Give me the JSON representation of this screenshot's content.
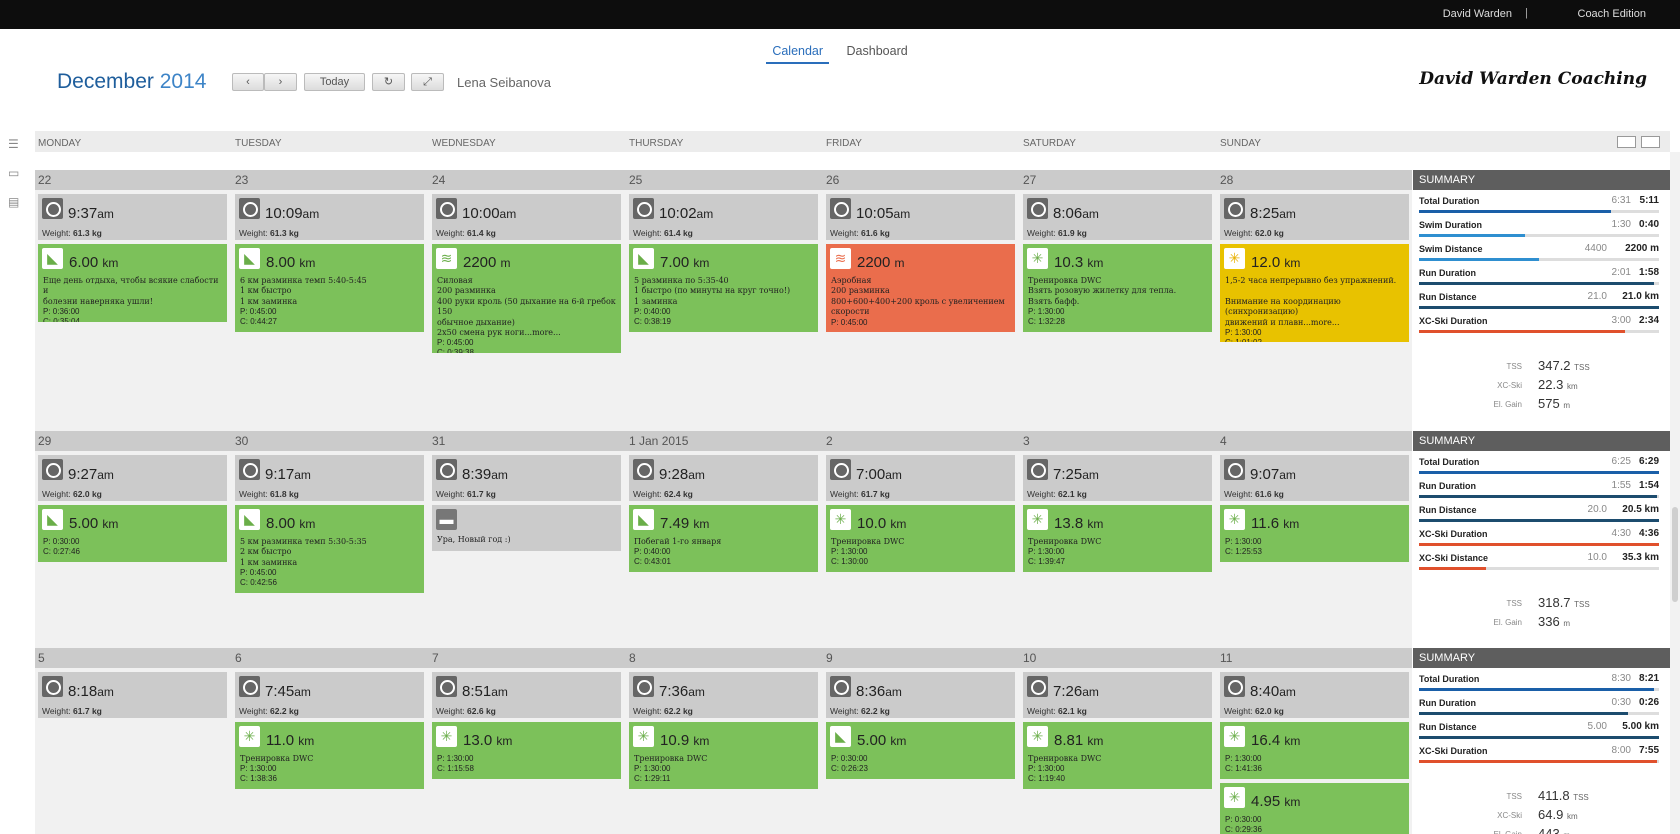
{
  "topbar": {
    "user": "David Warden",
    "separator": "|",
    "edition": "Coach Edition"
  },
  "nav": {
    "tabs": [
      {
        "label": "Calendar",
        "active": true
      },
      {
        "label": "Dashboard",
        "active": false
      }
    ]
  },
  "header": {
    "month": "December",
    "year": "2014",
    "prev_icon": "chevron-left-icon",
    "next_icon": "chevron-right-icon",
    "today_label": "Today",
    "refresh_icon": "refresh-icon",
    "expand_icon": "expand-icon",
    "athlete": "Lena Seibanova",
    "brand": "David Warden Coaching"
  },
  "days": [
    "MONDAY",
    "TUESDAY",
    "WEDNESDAY",
    "THURSDAY",
    "FRIDAY",
    "SATURDAY",
    "SUNDAY"
  ],
  "weeks": [
    {
      "dates": [
        "22",
        "23",
        "24",
        "25",
        "26",
        "27",
        "28"
      ],
      "metrics": [
        {
          "time": "9:37",
          "ampm": "am",
          "weight_label": "Weight:",
          "weight": "61.3 kg"
        },
        {
          "time": "10:09",
          "ampm": "am",
          "weight_label": "Weight:",
          "weight": "61.3 kg"
        },
        {
          "time": "10:00",
          "ampm": "am",
          "weight_label": "Weight:",
          "weight": "61.4 kg"
        },
        {
          "time": "10:02",
          "ampm": "am",
          "weight_label": "Weight:",
          "weight": "61.4 kg"
        },
        {
          "time": "10:05",
          "ampm": "am",
          "weight_label": "Weight:",
          "weight": "61.6 kg"
        },
        {
          "time": "8:06",
          "ampm": "am",
          "weight_label": "Weight:",
          "weight": "61.9 kg"
        },
        {
          "time": "8:25",
          "ampm": "am",
          "weight_label": "Weight:",
          "weight": "62.0 kg"
        }
      ],
      "workouts": [
        [
          {
            "color": "green",
            "icon": "run-shoe-icon",
            "dist": "6.00",
            "unit": "km",
            "desc": "Еще день отдыха, чтобы всякие слабости и\nболезни наверняка ушли!",
            "p": "P: 0:36:00",
            "c": "C: 0:35:04"
          }
        ],
        [
          {
            "color": "green",
            "icon": "run-shoe-icon",
            "dist": "8.00",
            "unit": "km",
            "desc": "6 км разминка темп 5:40-5:45\n1 км быстро\n1 км заминка",
            "p": "P: 0:45:00",
            "c": "C: 0:44:27"
          }
        ],
        [
          {
            "color": "green",
            "icon": "swim-icon",
            "dist": "2200",
            "unit": "m",
            "desc": "Силовая\n200 разминка\n400 руки кроль (50 дыхание на 6-й гребок 150\nобычное дыхание)\n2х50 смена рук ноги...more...",
            "p": "P: 0:45:00",
            "c": "C: 0:39:38"
          }
        ],
        [
          {
            "color": "green",
            "icon": "run-shoe-icon",
            "dist": "7.00",
            "unit": "km",
            "desc": "5 разминка по 5:35-40\n1 быстро (по минуты на круг точно!)\n1 заминка",
            "p": "P: 0:40:00",
            "c": "C: 0:38:19"
          }
        ],
        [
          {
            "color": "red",
            "icon": "swim-icon",
            "dist": "2200",
            "unit": "m",
            "desc": "Аэробная\n200 разминка\n800+600+400+200 кроль с увеличением\nскорости",
            "p": "P: 0:45:00",
            "c": ""
          }
        ],
        [
          {
            "color": "green",
            "icon": "snowflake-icon",
            "dist": "10.3",
            "unit": "km",
            "desc": "Тренировка DWC\nВзять розовую жилетку для тепла.\nВзять бафф.",
            "p": "P: 1:30:00",
            "c": "C: 1:32:28"
          }
        ],
        [
          {
            "color": "yellow",
            "icon": "snowflake-icon",
            "dist": "12.0",
            "unit": "km",
            "desc": "1,5-2 часа непрерывно без упражнений.\n\nВнимание на координацию (синхронизацию)\nдвижений и плавн...more...",
            "p": "P: 1:30:00",
            "c": "C: 1:01:02"
          }
        ]
      ],
      "summary": {
        "title": "SUMMARY",
        "rows": [
          {
            "label": "Total Duration",
            "planned": "6:31",
            "completed": "5:11",
            "fraction": 0.8,
            "color": "#1a5fa8"
          },
          {
            "label": "Swim Duration",
            "planned": "1:30",
            "completed": "0:40",
            "fraction": 0.44,
            "color": "#2f8fd0"
          },
          {
            "label": "Swim Distance",
            "planned": "4400",
            "completed": "2200 m",
            "fraction": 0.5,
            "color": "#2f8fd0"
          },
          {
            "label": "Run Duration",
            "planned": "2:01",
            "completed": "1:58",
            "fraction": 0.98,
            "color": "#1c4c6e"
          },
          {
            "label": "Run Distance",
            "planned": "21.0",
            "completed": "21.0 km",
            "fraction": 1.0,
            "color": "#1c4c6e"
          },
          {
            "label": "XC-Ski Duration",
            "planned": "3:00",
            "completed": "2:34",
            "fraction": 0.86,
            "color": "#e0502c"
          }
        ],
        "totals": [
          {
            "label": "TSS",
            "value": "347.2",
            "unit": "TSS"
          },
          {
            "label": "XC-Ski",
            "value": "22.3",
            "unit": "km"
          },
          {
            "label": "El. Gain",
            "value": "575",
            "unit": "m"
          }
        ]
      }
    },
    {
      "dates": [
        "29",
        "30",
        "31",
        "1 Jan 2015",
        "2",
        "3",
        "4"
      ],
      "metrics": [
        {
          "time": "9:27",
          "ampm": "am",
          "weight_label": "Weight:",
          "weight": "62.0 kg"
        },
        {
          "time": "9:17",
          "ampm": "am",
          "weight_label": "Weight:",
          "weight": "61.8 kg"
        },
        {
          "time": "8:39",
          "ampm": "am",
          "weight_label": "Weight:",
          "weight": "61.7 kg"
        },
        {
          "time": "9:28",
          "ampm": "am",
          "weight_label": "Weight:",
          "weight": "62.4 kg"
        },
        {
          "time": "7:00",
          "ampm": "am",
          "weight_label": "Weight:",
          "weight": "61.7 kg"
        },
        {
          "time": "7:25",
          "ampm": "am",
          "weight_label": "Weight:",
          "weight": "62.1 kg"
        },
        {
          "time": "9:07",
          "ampm": "am",
          "weight_label": "Weight:",
          "weight": "61.6 kg"
        }
      ],
      "workouts": [
        [
          {
            "color": "green",
            "icon": "run-shoe-icon",
            "dist": "5.00",
            "unit": "km",
            "desc": "",
            "p": "P: 0:30:00",
            "c": "C: 0:27:46"
          }
        ],
        [
          {
            "color": "green",
            "icon": "run-shoe-icon",
            "dist": "8.00",
            "unit": "km",
            "desc": "5 км разминка темп 5:30-5:35\n2 км быстро\n1 км заминка",
            "p": "P: 0:45:00",
            "c": "C: 0:42:56"
          }
        ],
        [
          {
            "color": "grey",
            "icon": "note-icon",
            "dist": "",
            "unit": "",
            "desc": "Ура, Новый год :)",
            "p": "",
            "c": ""
          }
        ],
        [
          {
            "color": "green",
            "icon": "run-shoe-icon",
            "dist": "7.49",
            "unit": "km",
            "desc": "Побегай 1-го января",
            "p": "P: 0:40:00",
            "c": "C: 0:43:01"
          }
        ],
        [
          {
            "color": "green",
            "icon": "snowflake-icon",
            "dist": "10.0",
            "unit": "km",
            "desc": "Тренировка DWC",
            "p": "P: 1:30:00",
            "c": "C: 1:30:00"
          }
        ],
        [
          {
            "color": "green",
            "icon": "snowflake-icon",
            "dist": "13.8",
            "unit": "km",
            "desc": "Тренировка DWC",
            "p": "P: 1:30:00",
            "c": "C: 1:39:47"
          }
        ],
        [
          {
            "color": "green",
            "icon": "snowflake-icon",
            "dist": "11.6",
            "unit": "km",
            "desc": "",
            "p": "P: 1:30:00",
            "c": "C: 1:25:53"
          }
        ]
      ],
      "summary": {
        "title": "SUMMARY",
        "rows": [
          {
            "label": "Total Duration",
            "planned": "6:25",
            "completed": "6:29",
            "fraction": 1.0,
            "color": "#1a5fa8"
          },
          {
            "label": "Run Duration",
            "planned": "1:55",
            "completed": "1:54",
            "fraction": 0.99,
            "color": "#1c4c6e"
          },
          {
            "label": "Run Distance",
            "planned": "20.0",
            "completed": "20.5 km",
            "fraction": 1.0,
            "color": "#1c4c6e"
          },
          {
            "label": "XC-Ski Duration",
            "planned": "4:30",
            "completed": "4:36",
            "fraction": 1.0,
            "color": "#e0502c"
          },
          {
            "label": "XC-Ski Distance",
            "planned": "10.0",
            "completed": "35.3 km",
            "fraction": 0.28,
            "color": "#e0502c"
          }
        ],
        "totals": [
          {
            "label": "TSS",
            "value": "318.7",
            "unit": "TSS"
          },
          {
            "label": "El. Gain",
            "value": "336",
            "unit": "m"
          }
        ]
      }
    },
    {
      "dates": [
        "5",
        "6",
        "7",
        "8",
        "9",
        "10",
        "11"
      ],
      "metrics": [
        {
          "time": "8:18",
          "ampm": "am",
          "weight_label": "Weight:",
          "weight": "61.7 kg"
        },
        {
          "time": "7:45",
          "ampm": "am",
          "weight_label": "Weight:",
          "weight": "62.2 kg"
        },
        {
          "time": "8:51",
          "ampm": "am",
          "weight_label": "Weight:",
          "weight": "62.6 kg"
        },
        {
          "time": "7:36",
          "ampm": "am",
          "weight_label": "Weight:",
          "weight": "62.2 kg"
        },
        {
          "time": "8:36",
          "ampm": "am",
          "weight_label": "Weight:",
          "weight": "62.2 kg"
        },
        {
          "time": "7:26",
          "ampm": "am",
          "weight_label": "Weight:",
          "weight": "62.1 kg"
        },
        {
          "time": "8:40",
          "ampm": "am",
          "weight_label": "Weight:",
          "weight": "62.0 kg"
        }
      ],
      "workouts": [
        [],
        [
          {
            "color": "green",
            "icon": "snowflake-icon",
            "dist": "11.0",
            "unit": "km",
            "desc": "Тренировка DWC",
            "p": "P: 1:30:00",
            "c": "C: 1:38:36"
          }
        ],
        [
          {
            "color": "green",
            "icon": "snowflake-icon",
            "dist": "13.0",
            "unit": "km",
            "desc": "",
            "p": "P: 1:30:00",
            "c": "C: 1:15:58"
          }
        ],
        [
          {
            "color": "green",
            "icon": "snowflake-icon",
            "dist": "10.9",
            "unit": "km",
            "desc": "Тренировка DWC",
            "p": "P: 1:30:00",
            "c": "C: 1:29:11"
          }
        ],
        [
          {
            "color": "green",
            "icon": "run-shoe-icon",
            "dist": "5.00",
            "unit": "km",
            "desc": "",
            "p": "P: 0:30:00",
            "c": "C: 0:26:23"
          }
        ],
        [
          {
            "color": "green",
            "icon": "snowflake-icon",
            "dist": "8.81",
            "unit": "km",
            "desc": "Тренировка DWC",
            "p": "P: 1:30:00",
            "c": "C: 1:19:40"
          }
        ],
        [
          {
            "color": "green",
            "icon": "snowflake-icon",
            "dist": "16.4",
            "unit": "km",
            "desc": "",
            "p": "P: 1:30:00",
            "c": "C: 1:41:36"
          },
          {
            "color": "green",
            "icon": "snowflake-icon",
            "dist": "4.95",
            "unit": "km",
            "desc": "",
            "p": "P: 0:30:00",
            "c": "C: 0:29:36"
          }
        ]
      ],
      "summary": {
        "title": "SUMMARY",
        "rows": [
          {
            "label": "Total Duration",
            "planned": "8:30",
            "completed": "8:21",
            "fraction": 0.98,
            "color": "#1a5fa8"
          },
          {
            "label": "Run Duration",
            "planned": "0:30",
            "completed": "0:26",
            "fraction": 0.87,
            "color": "#1c4c6e"
          },
          {
            "label": "Run Distance",
            "planned": "5.00",
            "completed": "5.00 km",
            "fraction": 1.0,
            "color": "#1c4c6e"
          },
          {
            "label": "XC-Ski Duration",
            "planned": "8:00",
            "completed": "7:55",
            "fraction": 0.99,
            "color": "#e0502c"
          }
        ],
        "totals": [
          {
            "label": "TSS",
            "value": "411.8",
            "unit": "TSS"
          },
          {
            "label": "XC-Ski",
            "value": "64.9",
            "unit": "km"
          },
          {
            "label": "El. Gain",
            "value": "443",
            "unit": "m"
          }
        ]
      }
    }
  ]
}
